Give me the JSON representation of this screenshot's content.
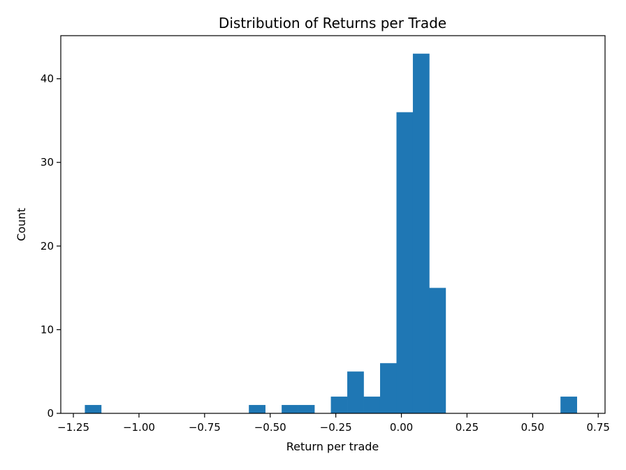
{
  "chart_data": {
    "type": "bar",
    "title": "Distribution of Returns per Trade",
    "xlabel": "Return per trade",
    "ylabel": "Count",
    "bin_width": 0.0625,
    "bins": [
      {
        "start": -1.2063,
        "count": 1
      },
      {
        "start": -1.1438,
        "count": 0
      },
      {
        "start": -1.0813,
        "count": 0
      },
      {
        "start": -1.0188,
        "count": 0
      },
      {
        "start": -0.9563,
        "count": 0
      },
      {
        "start": -0.8938,
        "count": 0
      },
      {
        "start": -0.8313,
        "count": 0
      },
      {
        "start": -0.7688,
        "count": 0
      },
      {
        "start": -0.7063,
        "count": 0
      },
      {
        "start": -0.6438,
        "count": 0
      },
      {
        "start": -0.5813,
        "count": 1
      },
      {
        "start": -0.5188,
        "count": 0
      },
      {
        "start": -0.4563,
        "count": 1
      },
      {
        "start": -0.3938,
        "count": 1
      },
      {
        "start": -0.3313,
        "count": 0
      },
      {
        "start": -0.2688,
        "count": 2
      },
      {
        "start": -0.2063,
        "count": 5
      },
      {
        "start": -0.1438,
        "count": 2
      },
      {
        "start": -0.0813,
        "count": 6
      },
      {
        "start": -0.0188,
        "count": 36
      },
      {
        "start": 0.0437,
        "count": 43
      },
      {
        "start": 0.1062,
        "count": 15
      },
      {
        "start": 0.1687,
        "count": 0
      },
      {
        "start": 0.2312,
        "count": 0
      },
      {
        "start": 0.2937,
        "count": 0
      },
      {
        "start": 0.3562,
        "count": 0
      },
      {
        "start": 0.4187,
        "count": 0
      },
      {
        "start": 0.4812,
        "count": 0
      },
      {
        "start": 0.5437,
        "count": 0
      },
      {
        "start": 0.6062,
        "count": 2
      }
    ],
    "xlim": [
      -1.298,
      0.776
    ],
    "ylim": [
      0,
      45.15
    ],
    "xticks": [
      -1.25,
      -1.0,
      -0.75,
      -0.5,
      -0.25,
      0.0,
      0.25,
      0.5,
      0.75
    ],
    "xtick_labels": [
      "−1.25",
      "−1.00",
      "−0.75",
      "−0.50",
      "−0.25",
      "0.00",
      "0.25",
      "0.50",
      "0.75"
    ],
    "yticks": [
      0,
      10,
      20,
      30,
      40
    ],
    "ytick_labels": [
      "0",
      "10",
      "20",
      "30",
      "40"
    ],
    "grid": false,
    "bar_color": "#1f77b4"
  }
}
